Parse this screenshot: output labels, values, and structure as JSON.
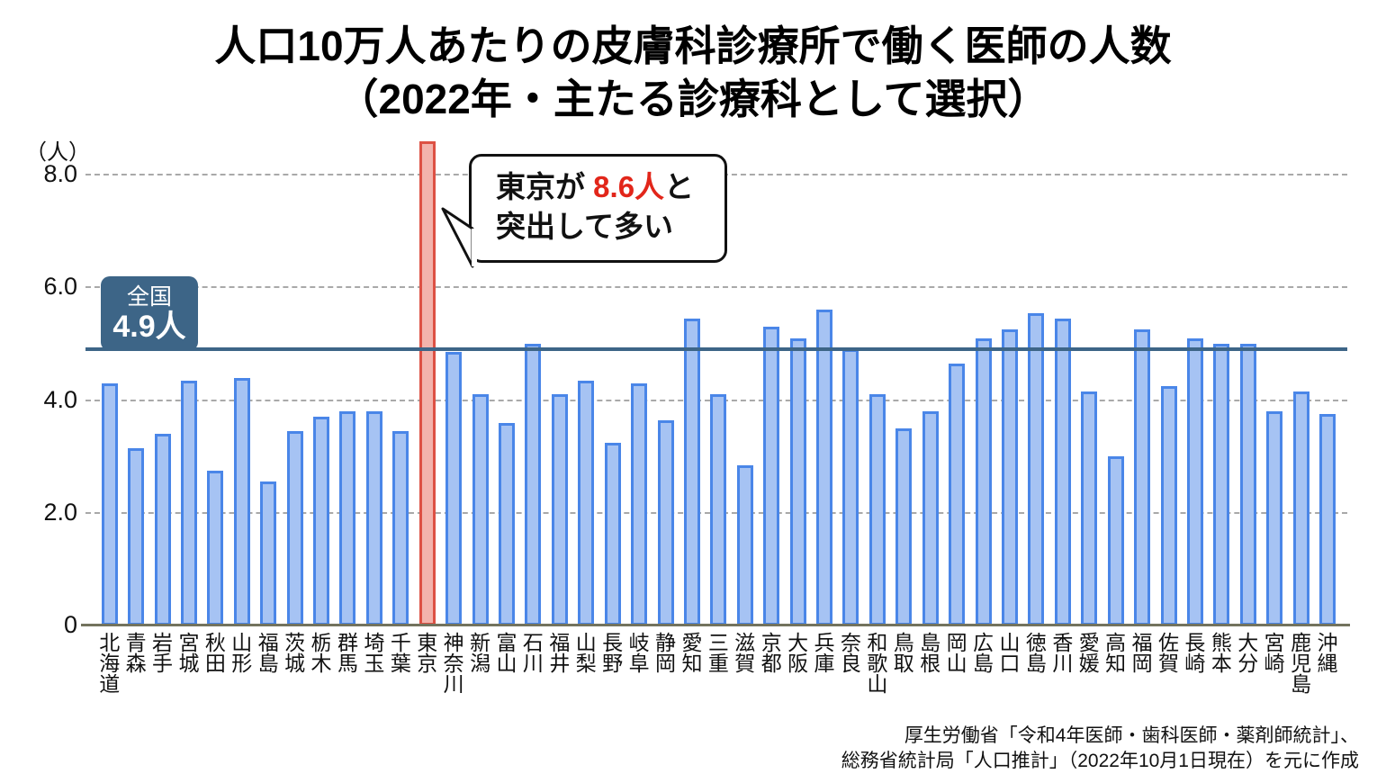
{
  "title": {
    "line1": "人口10万人あたりの皮膚科診療所で働く医師の人数",
    "line2": "（2022年・主たる診療科として選択）"
  },
  "y_axis": {
    "unit": "（人）",
    "ticks": [
      {
        "label": "8.0",
        "value": 8
      },
      {
        "label": "6.0",
        "value": 6
      },
      {
        "label": "4.0",
        "value": 4
      },
      {
        "label": "2.0",
        "value": 2
      },
      {
        "label": "0",
        "value": 0
      }
    ]
  },
  "reference": {
    "label": "全国",
    "value_label": "4.9人",
    "value": 4.9
  },
  "callout": {
    "prefix": "東京が ",
    "highlight": "8.6人",
    "suffix": "と",
    "line2": "突出して多い"
  },
  "source": {
    "line1": "厚生労働省「令和4年医師・歯科医師・薬剤師統計」、",
    "line2": "総務省統計局「人口推計」（2022年10月1日現在）を元に作成"
  },
  "colors": {
    "bar_fill": "#a6c3f3",
    "bar_border": "#4a86e8",
    "highlight_fill": "#f3b3ac",
    "highlight_border": "#dd5144",
    "reference": "#3d6587",
    "grid": "#a9a9a9",
    "baseline": "#73735e",
    "callout_highlight": "#e2261a"
  },
  "chart_data": {
    "type": "bar",
    "title": "人口10万人あたりの皮膚科診療所で働く医師の人数（2022年・主たる診療科として選択）",
    "ylabel": "（人）",
    "ylim": [
      0,
      8.6
    ],
    "gridlines": [
      8,
      6,
      4,
      2
    ],
    "grid": "dashed",
    "reference_line": 4.9,
    "highlight_index": 12,
    "categories": [
      "北海道",
      "青森",
      "岩手",
      "宮城",
      "秋田",
      "山形",
      "福島",
      "茨城",
      "栃木",
      "群馬",
      "埼玉",
      "千葉",
      "東京",
      "神奈川",
      "新潟",
      "富山",
      "石川",
      "福井",
      "山梨",
      "長野",
      "岐阜",
      "静岡",
      "愛知",
      "三重",
      "滋賀",
      "京都",
      "大阪",
      "兵庫",
      "奈良",
      "和歌山",
      "鳥取",
      "島根",
      "岡山",
      "広島",
      "山口",
      "徳島",
      "香川",
      "愛媛",
      "高知",
      "福岡",
      "佐賀",
      "長崎",
      "熊本",
      "大分",
      "宮崎",
      "鹿児島",
      "沖縄"
    ],
    "values": [
      4.3,
      3.15,
      3.4,
      4.35,
      2.75,
      4.4,
      2.55,
      3.45,
      3.7,
      3.8,
      3.8,
      3.45,
      8.6,
      4.85,
      4.1,
      3.6,
      5.0,
      4.1,
      4.35,
      3.25,
      4.3,
      3.65,
      5.45,
      4.1,
      2.85,
      5.3,
      5.1,
      5.6,
      4.9,
      4.1,
      3.5,
      3.8,
      4.65,
      5.1,
      5.25,
      5.55,
      5.45,
      4.15,
      3.0,
      5.25,
      4.25,
      5.1,
      5.0,
      5.0,
      3.8,
      4.15,
      3.75
    ]
  }
}
